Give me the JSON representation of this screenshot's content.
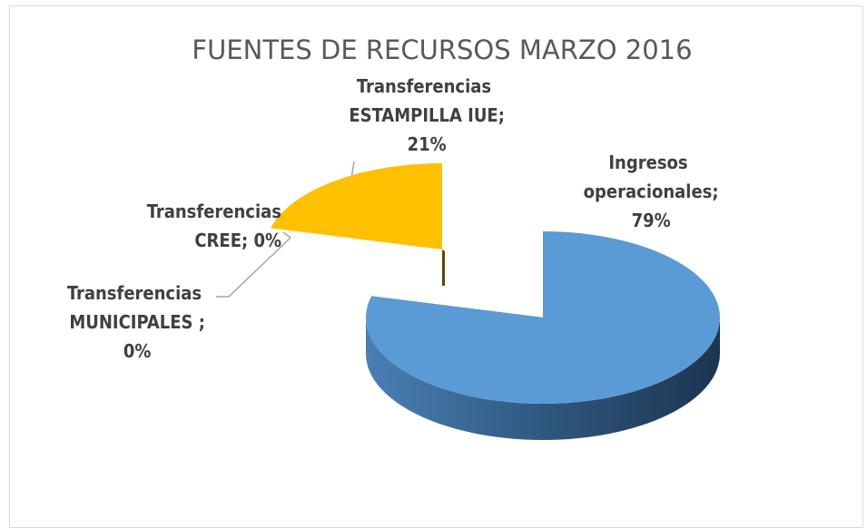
{
  "chart_data": {
    "type": "pie3d",
    "title": "FUENTES DE RECURSOS MARZO 2016",
    "values": [
      79,
      0,
      0,
      21
    ],
    "value_labels": [
      "Ingresos operacionales; 79%",
      "Transferencias MUNICIPALES ; 0%",
      "Transferencias CREE; 0%",
      "Transferencias ESTAMPILLA IUE; 21%"
    ],
    "colors": [
      "#5b9bd5",
      "#a5a5a5",
      "#ed7d31",
      "#ffc000"
    ]
  }
}
